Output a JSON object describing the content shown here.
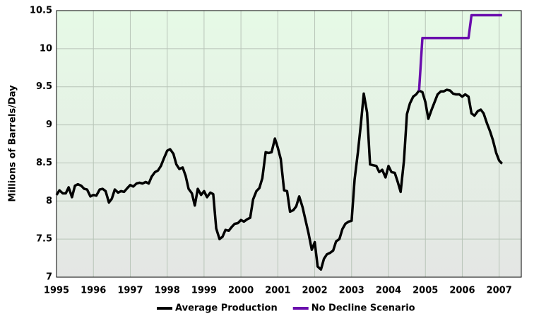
{
  "chart_data": {
    "type": "line",
    "y_label": "Millions of Barrels/Day",
    "x": [
      1995,
      1995.08,
      1995.17,
      1995.25,
      1995.33,
      1995.42,
      1995.5,
      1995.58,
      1995.67,
      1995.75,
      1995.83,
      1995.92,
      1996,
      1996.08,
      1996.17,
      1996.25,
      1996.33,
      1996.42,
      1996.5,
      1996.58,
      1996.67,
      1996.75,
      1996.83,
      1996.92,
      1997,
      1997.08,
      1997.17,
      1997.25,
      1997.33,
      1997.42,
      1997.5,
      1997.58,
      1997.67,
      1997.75,
      1997.83,
      1997.92,
      1998,
      1998.08,
      1998.17,
      1998.25,
      1998.33,
      1998.42,
      1998.5,
      1998.58,
      1998.67,
      1998.75,
      1998.83,
      1998.92,
      1999,
      1999.08,
      1999.17,
      1999.25,
      1999.33,
      1999.42,
      1999.5,
      1999.58,
      1999.67,
      1999.75,
      1999.83,
      1999.92,
      2000,
      2000.08,
      2000.17,
      2000.25,
      2000.33,
      2000.42,
      2000.5,
      2000.58,
      2000.67,
      2000.75,
      2000.83,
      2000.92,
      2001,
      2001.08,
      2001.17,
      2001.25,
      2001.33,
      2001.42,
      2001.5,
      2001.58,
      2001.67,
      2001.75,
      2001.83,
      2001.92,
      2002,
      2002.08,
      2002.17,
      2002.25,
      2002.33,
      2002.42,
      2002.5,
      2002.58,
      2002.67,
      2002.75,
      2002.83,
      2002.92,
      2003,
      2003.08,
      2003.17,
      2003.25,
      2003.33,
      2003.42,
      2003.5,
      2003.58,
      2003.67,
      2003.75,
      2003.83,
      2003.92,
      2004,
      2004.08,
      2004.17,
      2004.25,
      2004.33,
      2004.42,
      2004.5,
      2004.58,
      2004.67,
      2004.75,
      2004.83,
      2004.92,
      2005,
      2005.08,
      2005.17,
      2005.25,
      2005.33,
      2005.42,
      2005.5,
      2005.58,
      2005.67,
      2005.75,
      2005.83,
      2005.92,
      2006,
      2006.08,
      2006.17,
      2006.25,
      2006.33,
      2006.42,
      2006.5,
      2006.58,
      2006.67,
      2006.75,
      2006.83,
      2006.92,
      2007,
      2007.08
    ],
    "series": [
      {
        "name": "Average Production",
        "color": "#000000",
        "values": [
          8.08,
          8.14,
          8.1,
          8.1,
          8.18,
          8.05,
          8.2,
          8.22,
          8.2,
          8.16,
          8.15,
          8.06,
          8.08,
          8.07,
          8.15,
          8.16,
          8.13,
          7.98,
          8.03,
          8.15,
          8.11,
          8.13,
          8.12,
          8.17,
          8.21,
          8.19,
          8.23,
          8.24,
          8.23,
          8.25,
          8.23,
          8.32,
          8.38,
          8.4,
          8.46,
          8.57,
          8.66,
          8.68,
          8.62,
          8.48,
          8.42,
          8.44,
          8.33,
          8.16,
          8.1,
          7.94,
          8.16,
          8.08,
          8.13,
          8.05,
          8.11,
          8.09,
          7.64,
          7.5,
          7.53,
          7.62,
          7.61,
          7.66,
          7.7,
          7.71,
          7.75,
          7.73,
          7.76,
          7.78,
          8.02,
          8.13,
          8.17,
          8.3,
          8.64,
          8.63,
          8.64,
          8.82,
          8.7,
          8.55,
          8.14,
          8.13,
          7.86,
          7.88,
          7.93,
          8.06,
          7.92,
          7.75,
          7.58,
          7.36,
          7.46,
          7.14,
          7.1,
          7.24,
          7.3,
          7.32,
          7.35,
          7.47,
          7.5,
          7.63,
          7.7,
          7.73,
          7.74,
          8.28,
          8.64,
          9.0,
          9.41,
          9.16,
          8.48,
          8.47,
          8.46,
          8.38,
          8.41,
          8.31,
          8.46,
          8.38,
          8.37,
          8.25,
          8.12,
          8.53,
          9.14,
          9.28,
          9.37,
          9.4,
          9.45,
          9.43,
          9.3,
          9.08,
          9.2,
          9.3,
          9.4,
          9.44,
          9.44,
          9.46,
          9.45,
          9.41,
          9.4,
          9.4,
          9.37,
          9.4,
          9.37,
          9.15,
          9.12,
          9.18,
          9.2,
          9.15,
          9.02,
          8.92,
          8.8,
          8.63,
          8.53,
          8.49
        ]
      },
      {
        "name": "No Decline Scenario",
        "color": "#6a0dad",
        "values": [
          null,
          null,
          null,
          null,
          null,
          null,
          null,
          null,
          null,
          null,
          null,
          null,
          null,
          null,
          null,
          null,
          null,
          null,
          null,
          null,
          null,
          null,
          null,
          null,
          null,
          null,
          null,
          null,
          null,
          null,
          null,
          null,
          null,
          null,
          null,
          null,
          null,
          null,
          null,
          null,
          null,
          null,
          null,
          null,
          null,
          null,
          null,
          null,
          null,
          null,
          null,
          null,
          null,
          null,
          null,
          null,
          null,
          null,
          null,
          null,
          null,
          null,
          null,
          null,
          null,
          null,
          null,
          null,
          null,
          null,
          null,
          null,
          null,
          null,
          null,
          null,
          null,
          null,
          null,
          null,
          null,
          null,
          null,
          null,
          null,
          null,
          null,
          null,
          null,
          null,
          null,
          null,
          null,
          null,
          null,
          null,
          null,
          null,
          null,
          null,
          null,
          null,
          null,
          null,
          null,
          null,
          null,
          null,
          null,
          null,
          null,
          null,
          null,
          null,
          null,
          null,
          null,
          null,
          9.45,
          10.14,
          10.14,
          10.14,
          10.14,
          10.14,
          10.14,
          10.14,
          10.14,
          10.14,
          10.14,
          10.14,
          10.14,
          10.14,
          10.14,
          10.14,
          10.14,
          10.44,
          10.44,
          10.44,
          10.44,
          10.44,
          10.44,
          10.44,
          10.44,
          10.44,
          10.44,
          10.44
        ]
      }
    ],
    "xlim": [
      1995,
      2007.6
    ],
    "xticks": [
      1995,
      1996,
      1997,
      1998,
      1999,
      2000,
      2001,
      2002,
      2003,
      2004,
      2005,
      2006,
      2007
    ],
    "ylim": [
      7,
      10.5
    ],
    "yticks": [
      7,
      7.5,
      8,
      8.5,
      9,
      9.5,
      10,
      10.5
    ],
    "grid": true,
    "legend": "bottom"
  }
}
